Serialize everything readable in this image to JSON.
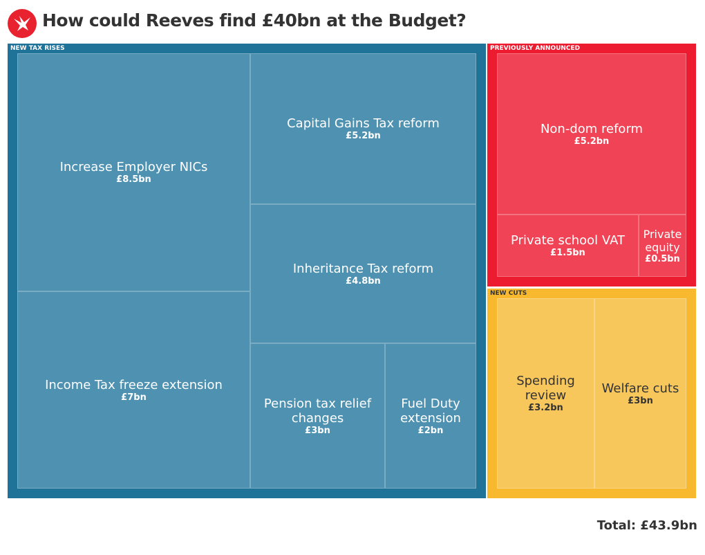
{
  "title": "How could Reeves find £40bn at the Budget?",
  "chart_data": {
    "type": "treemap",
    "title": "How could Reeves find £40bn at the Budget?",
    "unit": "£bn",
    "groups": [
      {
        "name": "NEW TAX RISES",
        "color": "#1f7399",
        "fill": "#4e91b1",
        "items": [
          {
            "label": "Increase Employer NICs",
            "value": 8.5,
            "value_label": "£8.5bn"
          },
          {
            "label": "Income Tax freeze extension",
            "value": 7,
            "value_label": "£7bn"
          },
          {
            "label": "Capital Gains Tax reform",
            "value": 5.2,
            "value_label": "£5.2bn"
          },
          {
            "label": "Inheritance Tax reform",
            "value": 4.8,
            "value_label": "£4.8bn"
          },
          {
            "label": "Pension tax relief changes",
            "value": 3,
            "value_label": "£3bn"
          },
          {
            "label": "Fuel Duty extension",
            "value": 2,
            "value_label": "£2bn"
          }
        ]
      },
      {
        "name": "PREVIOUSLY ANNOUNCED",
        "color": "#ed1b2f",
        "fill": "#f04456",
        "items": [
          {
            "label": "Non-dom reform",
            "value": 5.2,
            "value_label": "£5.2bn"
          },
          {
            "label": "Private school VAT",
            "value": 1.5,
            "value_label": "£1.5bn"
          },
          {
            "label": "Private equity",
            "value": 0.5,
            "value_label": "£0.5bn"
          }
        ]
      },
      {
        "name": "NEW CUTS",
        "color": "#f9b92e",
        "fill": "#f8c75c",
        "items": [
          {
            "label": "Spending review",
            "value": 3.2,
            "value_label": "£3.2bn"
          },
          {
            "label": "Welfare cuts",
            "value": 3,
            "value_label": "£3bn"
          }
        ]
      }
    ],
    "total_label": "Total: £43.9bn"
  }
}
